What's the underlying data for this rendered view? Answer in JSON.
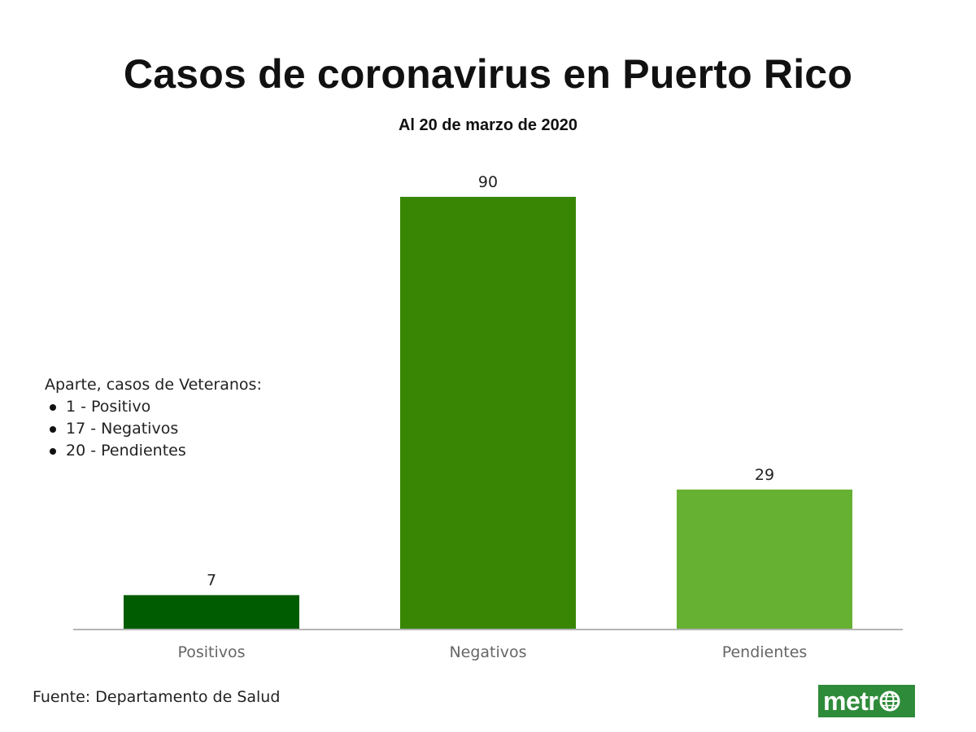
{
  "title": "Casos de coronavirus en Puerto Rico",
  "subtitle": "Al 20 de marzo de 2020",
  "note": {
    "heading": "Aparte, casos de Veteranos:",
    "items": [
      "1 - Positivo",
      "17 - Negativos",
      "20 - Pendientes"
    ]
  },
  "source": "Fuente: Departamento de Salud",
  "logo": {
    "text": "metr",
    "icon": "globe-icon",
    "color": "#2e8b3a"
  },
  "chart_data": {
    "type": "bar",
    "title": "Casos de coronavirus en Puerto Rico",
    "subtitle": "Al 20 de marzo de 2020",
    "categories": [
      "Positivos",
      "Negativos",
      "Pendientes"
    ],
    "values": [
      7,
      90,
      29
    ],
    "colors": [
      "#005c00",
      "#388604",
      "#66b032"
    ],
    "xlabel": "",
    "ylabel": "",
    "ylim": [
      0,
      90
    ],
    "grid": false,
    "legend": "none",
    "data_labels": true
  }
}
